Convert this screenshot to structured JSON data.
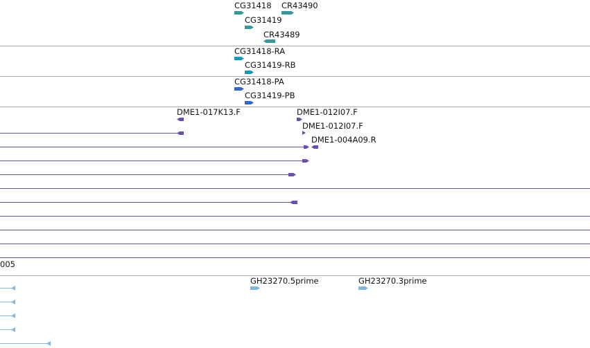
{
  "colors": {
    "background": "#ffffff",
    "track_divider": "#aaaaaa",
    "gene": "#339999",
    "transcript": "#1199bb",
    "protein": "#3366cc",
    "bac_end": "#6a4fa8",
    "est": "#7fb8dd",
    "label_text": "#111111"
  },
  "tracks": {
    "genes": {
      "features": [
        {
          "label": "CG31418",
          "icon": "forward-arrow-icon"
        },
        {
          "label": "CR43490",
          "icon": "forward-arrow-icon"
        },
        {
          "label": "CG31419",
          "icon": "forward-arrow-icon"
        },
        {
          "label": "CR43489",
          "icon": "reverse-arrow-icon"
        }
      ]
    },
    "transcripts": {
      "features": [
        {
          "label": "CG31418-RA",
          "icon": "forward-arrow-icon"
        },
        {
          "label": "CG31419-RB",
          "icon": "forward-arrow-icon"
        }
      ]
    },
    "proteins": {
      "features": [
        {
          "label": "CG31418-PA",
          "icon": "forward-arrow-icon"
        },
        {
          "label": "CG31419-PB",
          "icon": "forward-arrow-icon"
        }
      ]
    },
    "bac_ends": {
      "features": [
        {
          "label": "DME1-017K13.F",
          "icon": "reverse-arrow-icon"
        },
        {
          "label": "DME1-012I07.F",
          "icon": "forward-arrow-icon"
        },
        {
          "label": "DME1-012I07.F",
          "icon": "forward-arrow-icon"
        },
        {
          "label": "DME1-004A09.R",
          "icon": "reverse-arrow-icon"
        }
      ],
      "partial_label": "005"
    },
    "ests": {
      "features": [
        {
          "label": "GH23270.5prime",
          "icon": "forward-arrow-icon"
        },
        {
          "label": "GH23270.3prime",
          "icon": "forward-arrow-icon"
        }
      ]
    }
  }
}
